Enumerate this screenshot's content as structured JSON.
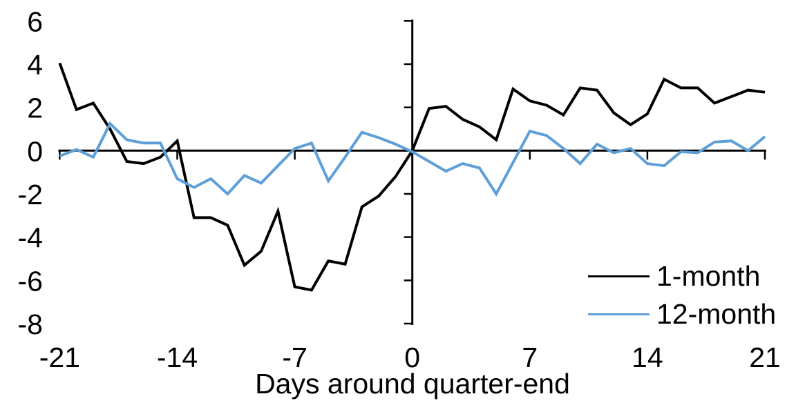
{
  "chart_data": {
    "type": "line",
    "title": "",
    "xlabel": "Days around quarter-end",
    "xlim": [
      -21,
      21
    ],
    "ylim": [
      -8,
      6
    ],
    "grid": false,
    "legend_position": "inside-lower-right",
    "xticks": [
      -21,
      -14,
      -7,
      0,
      7,
      14,
      21
    ],
    "yticks": [
      6,
      4,
      2,
      0,
      -2,
      -4,
      -6,
      -8
    ],
    "x": [
      -21,
      -20,
      -19,
      -18,
      -17,
      -16,
      -15,
      -14,
      -13,
      -12,
      -11,
      -10,
      -9,
      -8,
      -7,
      -6,
      -5,
      -4,
      -3,
      -2,
      -1,
      0,
      1,
      2,
      3,
      4,
      5,
      6,
      7,
      8,
      9,
      10,
      11,
      12,
      13,
      14,
      15,
      16,
      17,
      18,
      19,
      20,
      21
    ],
    "series": [
      {
        "name": "1-month",
        "color": "#000000",
        "values": [
          4.05,
          1.9,
          2.2,
          1.0,
          -0.5,
          -0.6,
          -0.3,
          0.45,
          -3.1,
          -3.1,
          -3.45,
          -5.3,
          -4.65,
          -2.8,
          -6.3,
          -6.45,
          -5.1,
          -5.25,
          -2.6,
          -2.1,
          -1.2,
          0,
          1.95,
          2.05,
          1.45,
          1.1,
          0.5,
          2.85,
          2.3,
          2.1,
          1.65,
          2.9,
          2.8,
          1.75,
          1.2,
          1.7,
          3.3,
          2.9,
          2.9,
          2.2,
          2.5,
          2.8,
          2.7
        ]
      },
      {
        "name": "12-month",
        "color": "#5E9FD8",
        "values": [
          -0.25,
          0.05,
          -0.3,
          1.25,
          0.5,
          0.35,
          0.35,
          -1.3,
          -1.7,
          -1.3,
          -2.0,
          -1.15,
          -1.5,
          -0.7,
          0.1,
          0.35,
          -1.4,
          -0.3,
          0.85,
          0.6,
          0.3,
          -0.05,
          -0.5,
          -0.95,
          -0.6,
          -0.8,
          -2.0,
          -0.55,
          0.9,
          0.7,
          0.1,
          -0.6,
          0.3,
          -0.1,
          0.1,
          -0.6,
          -0.7,
          -0.05,
          -0.1,
          0.4,
          0.45,
          0.0,
          0.65
        ]
      }
    ]
  },
  "colors": {
    "background": "#ffffff",
    "axis": "#000000",
    "text": "#000000"
  }
}
